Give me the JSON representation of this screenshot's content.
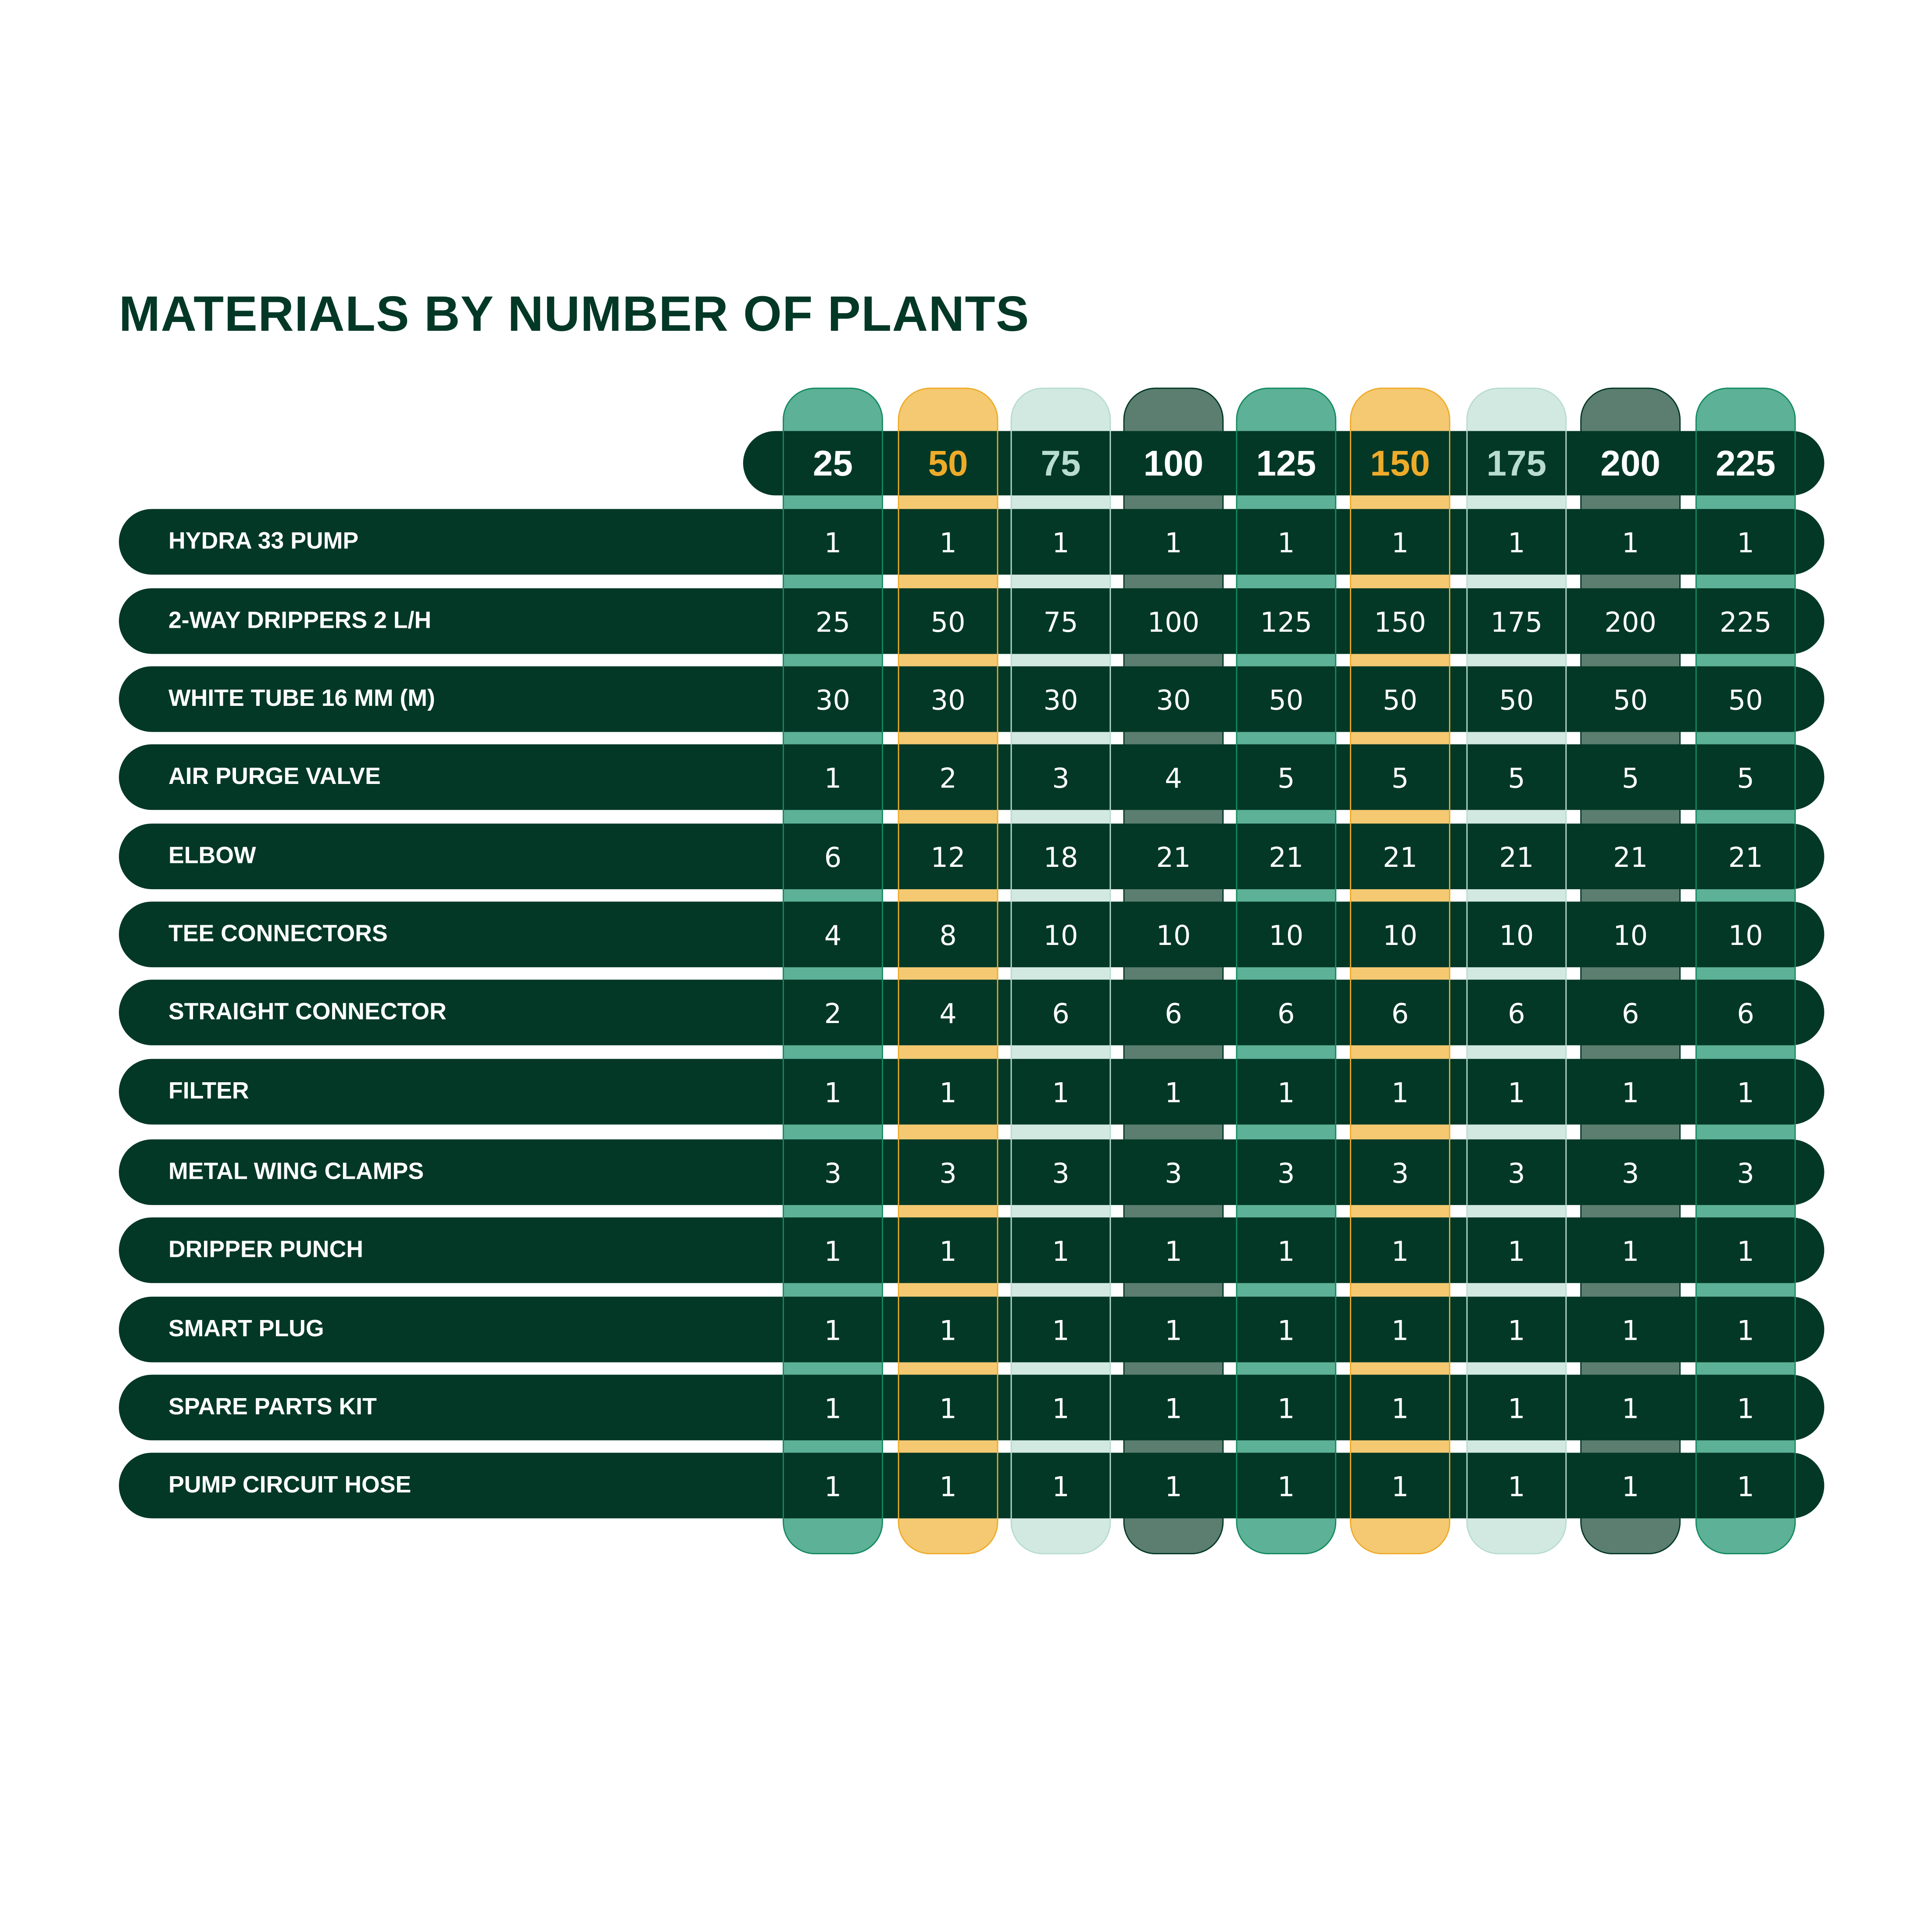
{
  "chart_data": {
    "type": "table",
    "title": "MATERIALS BY NUMBER OF PLANTS",
    "columns": [
      "25",
      "50",
      "75",
      "100",
      "125",
      "150",
      "175",
      "200",
      "225"
    ],
    "column_styles": [
      {
        "fill": "#5db196",
        "edge": "#138a5f",
        "text": "#ffffff"
      },
      {
        "fill": "#f5c971",
        "edge": "#eeab2a",
        "text": "#eeab2a"
      },
      {
        "fill": "#d2e9e1",
        "edge": "#b8dccf",
        "text": "#b8dccf"
      },
      {
        "fill": "#5b7e70",
        "edge": "#033826",
        "text": "#ffffff"
      },
      {
        "fill": "#5db196",
        "edge": "#138a5f",
        "text": "#ffffff"
      },
      {
        "fill": "#f5c971",
        "edge": "#eeab2a",
        "text": "#eeab2a"
      },
      {
        "fill": "#d2e9e1",
        "edge": "#b8dccf",
        "text": "#b8dccf"
      },
      {
        "fill": "#5b7e70",
        "edge": "#033826",
        "text": "#ffffff"
      },
      {
        "fill": "#5db196",
        "edge": "#138a5f",
        "text": "#ffffff"
      }
    ],
    "rows": [
      {
        "label": "HYDRA 33 PUMP",
        "values": [
          "1",
          "1",
          "1",
          "1",
          "1",
          "1",
          "1",
          "1",
          "1"
        ]
      },
      {
        "label": "2-WAY DRIPPERS 2 L/H",
        "values": [
          "25",
          "50",
          "75",
          "100",
          "125",
          "150",
          "175",
          "200",
          "225"
        ]
      },
      {
        "label": "WHITE TUBE 16 MM (M)",
        "values": [
          "30",
          "30",
          "30",
          "30",
          "50",
          "50",
          "50",
          "50",
          "50"
        ]
      },
      {
        "label": "AIR PURGE VALVE",
        "values": [
          "1",
          "2",
          "3",
          "4",
          "5",
          "5",
          "5",
          "5",
          "5"
        ]
      },
      {
        "label": "ELBOW",
        "values": [
          "6",
          "12",
          "18",
          "21",
          "21",
          "21",
          "21",
          "21",
          "21"
        ]
      },
      {
        "label": "TEE CONNECTORS",
        "values": [
          "4",
          "8",
          "10",
          "10",
          "10",
          "10",
          "10",
          "10",
          "10"
        ]
      },
      {
        "label": "STRAIGHT CONNECTOR",
        "values": [
          "2",
          "4",
          "6",
          "6",
          "6",
          "6",
          "6",
          "6",
          "6"
        ]
      },
      {
        "label": "FILTER",
        "values": [
          "1",
          "1",
          "1",
          "1",
          "1",
          "1",
          "1",
          "1",
          "1"
        ]
      },
      {
        "label": "METAL WING CLAMPS",
        "values": [
          "3",
          "3",
          "3",
          "3",
          "3",
          "3",
          "3",
          "3",
          "3"
        ]
      },
      {
        "label": "DRIPPER PUNCH",
        "values": [
          "1",
          "1",
          "1",
          "1",
          "1",
          "1",
          "1",
          "1",
          "1"
        ]
      },
      {
        "label": "SMART PLUG",
        "values": [
          "1",
          "1",
          "1",
          "1",
          "1",
          "1",
          "1",
          "1",
          "1"
        ]
      },
      {
        "label": "SPARE PARTS KIT",
        "values": [
          "1",
          "1",
          "1",
          "1",
          "1",
          "1",
          "1",
          "1",
          "1"
        ]
      },
      {
        "label": "PUMP CIRCUIT HOSE",
        "values": [
          "1",
          "1",
          "1",
          "1",
          "1",
          "1",
          "1",
          "1",
          "1"
        ]
      }
    ],
    "dark_color": "#033826"
  }
}
